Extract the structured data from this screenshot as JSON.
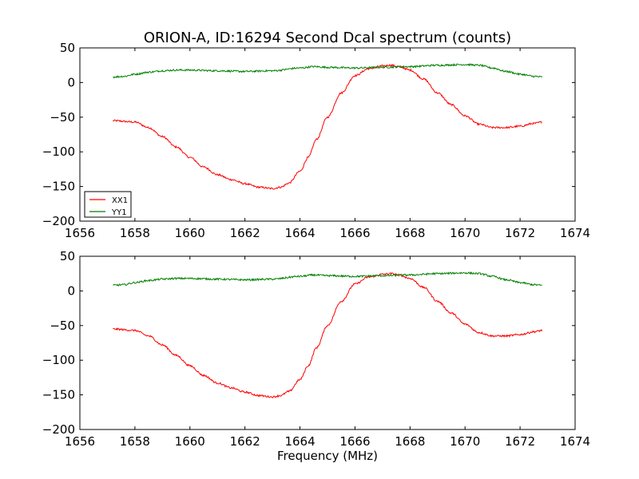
{
  "figure": {
    "title": "ORION-A, ID:16294 Second Dcal spectrum (counts)",
    "xlabel": "Frequency (MHz)"
  },
  "chart_data": [
    {
      "type": "line",
      "title": "ORION-A, ID:16294 Second Dcal spectrum (counts)",
      "xlabel": "",
      "ylabel": "",
      "xlim": [
        1656,
        1674
      ],
      "ylim": [
        -200,
        50
      ],
      "xticks": [
        "1656",
        "1658",
        "1660",
        "1662",
        "1664",
        "1666",
        "1668",
        "1670",
        "1672",
        "1674"
      ],
      "yticks": [
        "50",
        "0",
        "−50",
        "−100",
        "−150",
        "−200"
      ],
      "grid": false,
      "legend": "lower-left",
      "series": [
        {
          "name": "XX1",
          "color": "#ff0000",
          "x": [
            1657.2,
            1658.0,
            1658.5,
            1659.0,
            1659.5,
            1660.0,
            1660.5,
            1661.0,
            1661.5,
            1662.0,
            1662.5,
            1663.0,
            1663.3,
            1663.6,
            1664.0,
            1664.3,
            1664.6,
            1665.0,
            1665.5,
            1666.0,
            1666.5,
            1667.0,
            1667.3,
            1667.6,
            1668.0,
            1668.5,
            1669.0,
            1669.5,
            1670.0,
            1670.5,
            1671.0,
            1671.5,
            1672.0,
            1672.5,
            1672.8
          ],
          "values": [
            -55,
            -57,
            -65,
            -78,
            -93,
            -108,
            -122,
            -133,
            -140,
            -146,
            -151,
            -153,
            -151,
            -145,
            -128,
            -108,
            -82,
            -50,
            -15,
            10,
            20,
            24,
            25,
            23,
            18,
            5,
            -15,
            -32,
            -48,
            -60,
            -65,
            -65,
            -63,
            -59,
            -57
          ]
        },
        {
          "name": "YY1",
          "color": "#008000",
          "x": [
            1657.2,
            1657.6,
            1658.0,
            1658.5,
            1659.0,
            1659.5,
            1660.0,
            1661.0,
            1662.0,
            1663.0,
            1664.0,
            1664.5,
            1665.0,
            1666.0,
            1667.0,
            1668.0,
            1669.0,
            1670.0,
            1670.5,
            1671.0,
            1671.5,
            1672.0,
            1672.5,
            1672.8
          ],
          "values": [
            8,
            9,
            12,
            15,
            17,
            18,
            18,
            17,
            16,
            17,
            21,
            23,
            22,
            21,
            22,
            23,
            25,
            26,
            25,
            21,
            16,
            12,
            9,
            8
          ]
        }
      ]
    },
    {
      "type": "line",
      "title": "",
      "xlabel": "Frequency (MHz)",
      "ylabel": "",
      "xlim": [
        1656,
        1674
      ],
      "ylim": [
        -200,
        50
      ],
      "xticks": [
        "1656",
        "1658",
        "1660",
        "1662",
        "1664",
        "1666",
        "1668",
        "1670",
        "1672",
        "1674"
      ],
      "yticks": [
        "50",
        "0",
        "−50",
        "−100",
        "−150",
        "−200"
      ],
      "grid": false,
      "legend": "none",
      "series": [
        {
          "color": "#ff0000",
          "x": [
            1657.2,
            1658.0,
            1658.5,
            1659.0,
            1659.5,
            1660.0,
            1660.5,
            1661.0,
            1661.5,
            1662.0,
            1662.5,
            1663.0,
            1663.3,
            1663.6,
            1664.0,
            1664.3,
            1664.6,
            1665.0,
            1665.5,
            1666.0,
            1666.5,
            1667.0,
            1667.3,
            1667.6,
            1668.0,
            1668.5,
            1669.0,
            1669.5,
            1670.0,
            1670.5,
            1671.0,
            1671.5,
            1672.0,
            1672.5,
            1672.8
          ],
          "values": [
            -55,
            -57,
            -65,
            -78,
            -93,
            -108,
            -122,
            -133,
            -140,
            -146,
            -151,
            -153,
            -151,
            -145,
            -128,
            -108,
            -82,
            -50,
            -15,
            10,
            20,
            24,
            25,
            23,
            18,
            5,
            -15,
            -32,
            -48,
            -60,
            -65,
            -65,
            -63,
            -59,
            -57
          ]
        },
        {
          "color": "#008000",
          "x": [
            1657.2,
            1657.6,
            1658.0,
            1658.5,
            1659.0,
            1659.5,
            1660.0,
            1661.0,
            1662.0,
            1663.0,
            1664.0,
            1664.5,
            1665.0,
            1666.0,
            1667.0,
            1668.0,
            1669.0,
            1670.0,
            1670.5,
            1671.0,
            1671.5,
            1672.0,
            1672.5,
            1672.8
          ],
          "values": [
            8,
            9,
            12,
            15,
            17,
            18,
            18,
            17,
            16,
            17,
            21,
            23,
            22,
            21,
            22,
            23,
            25,
            26,
            25,
            21,
            16,
            12,
            9,
            8
          ]
        }
      ]
    }
  ]
}
